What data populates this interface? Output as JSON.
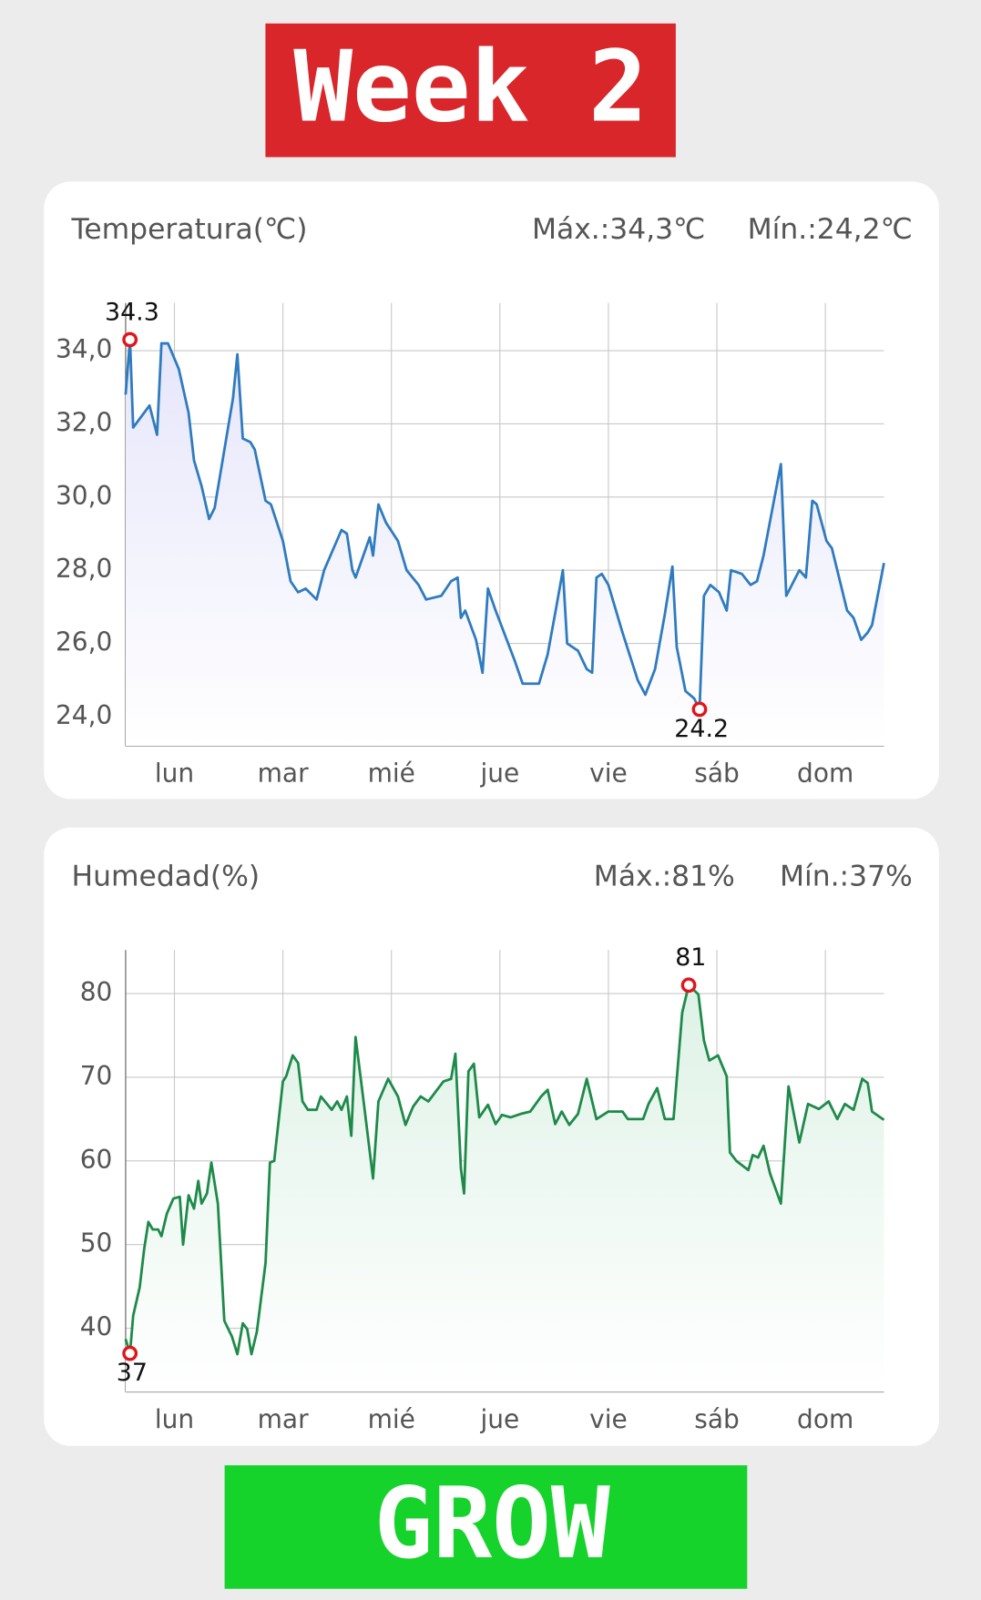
{
  "header": {
    "title": "Week 2"
  },
  "chart_data": [
    {
      "type": "line",
      "title": "Temperatura(℃)",
      "max_label": "Máx.:34,3℃",
      "min_label": "Mín.:24,2℃",
      "color": "#2f7bbf",
      "fill_color": "#e6e6fb",
      "grid": true,
      "x": [
        0.55,
        0.59,
        0.62,
        0.77,
        0.84,
        0.88,
        0.94,
        1.04,
        1.13,
        1.18,
        1.25,
        1.32,
        1.37,
        1.54,
        1.58,
        1.63,
        1.7,
        1.74,
        1.84,
        1.89,
        2.0,
        2.07,
        2.14,
        2.21,
        2.31,
        2.38,
        2.54,
        2.59,
        2.64,
        2.67,
        2.8,
        2.83,
        2.88,
        2.95,
        3.06,
        3.14,
        3.25,
        3.32,
        3.46,
        3.55,
        3.61,
        3.64,
        3.68,
        3.78,
        3.84,
        3.89,
        3.96,
        4.14,
        4.21,
        4.28,
        4.36,
        4.44,
        4.52,
        4.58,
        4.62,
        4.72,
        4.8,
        4.85,
        4.89,
        4.94,
        5.0,
        5.13,
        5.27,
        5.34,
        5.43,
        5.52,
        5.59,
        5.63,
        5.71,
        5.79,
        5.84,
        5.88,
        5.94,
        6.02,
        6.09,
        6.13,
        6.23,
        6.31,
        6.37,
        6.43,
        6.59,
        6.64,
        6.76,
        6.82,
        6.88,
        6.92,
        7.01,
        7.06,
        7.2,
        7.26,
        7.33,
        7.39,
        7.43,
        7.54
      ],
      "values": [
        32.8,
        34.3,
        31.9,
        32.5,
        31.7,
        34.2,
        34.2,
        33.5,
        32.3,
        31.0,
        30.3,
        29.4,
        29.7,
        32.7,
        33.9,
        31.6,
        31.5,
        31.3,
        29.9,
        29.8,
        28.8,
        27.7,
        27.4,
        27.5,
        27.2,
        28.0,
        29.1,
        29.0,
        28.0,
        27.8,
        28.9,
        28.4,
        29.8,
        29.3,
        28.8,
        28.0,
        27.6,
        27.2,
        27.3,
        27.7,
        27.8,
        26.7,
        26.9,
        26.1,
        25.2,
        27.5,
        26.9,
        25.5,
        24.9,
        24.9,
        24.9,
        25.7,
        27.0,
        28.0,
        26.0,
        25.8,
        25.3,
        25.2,
        27.8,
        27.9,
        27.6,
        26.3,
        25.0,
        24.6,
        25.3,
        26.8,
        28.1,
        25.9,
        24.7,
        24.5,
        24.2,
        27.3,
        27.6,
        27.4,
        26.9,
        28.0,
        27.9,
        27.6,
        27.7,
        28.4,
        30.9,
        27.3,
        28.0,
        27.8,
        29.9,
        29.8,
        28.8,
        28.6,
        26.9,
        26.7,
        26.1,
        26.3,
        26.5,
        28.2
      ],
      "xlim": [
        0.55,
        7.54
      ],
      "xticks": [
        {
          "value": 1,
          "label": "lun"
        },
        {
          "value": 2,
          "label": "mar"
        },
        {
          "value": 3,
          "label": "mié"
        },
        {
          "value": 4,
          "label": "jue"
        },
        {
          "value": 5,
          "label": "vie"
        },
        {
          "value": 6,
          "label": "sáb"
        },
        {
          "value": 7,
          "label": "dom"
        }
      ],
      "ylim": [
        23.2,
        35.3
      ],
      "yticks": [
        {
          "value": 24,
          "label": "24,0"
        },
        {
          "value": 26,
          "label": "26,0"
        },
        {
          "value": 28,
          "label": "28,0"
        },
        {
          "value": 30,
          "label": "30,0"
        },
        {
          "value": 32,
          "label": "32,0"
        },
        {
          "value": 34,
          "label": "34,0"
        }
      ],
      "annotations": [
        {
          "x": 0.59,
          "value": 34.3,
          "label": "34.3",
          "position": "above"
        },
        {
          "x": 5.84,
          "value": 24.2,
          "label": "24.2",
          "position": "below"
        }
      ]
    },
    {
      "type": "line",
      "title": "Humedad(%)",
      "max_label": "Máx.:81%",
      "min_label": "Mín.:37%",
      "color": "#1e8a4a",
      "fill_color": "#def2e6",
      "grid": true,
      "x": [
        0.55,
        0.59,
        0.62,
        0.68,
        0.72,
        0.76,
        0.8,
        0.85,
        0.88,
        0.93,
        0.99,
        1.05,
        1.08,
        1.13,
        1.18,
        1.22,
        1.25,
        1.3,
        1.34,
        1.4,
        1.46,
        1.53,
        1.58,
        1.63,
        1.67,
        1.71,
        1.76,
        1.84,
        1.88,
        1.92,
        2.0,
        2.03,
        2.09,
        2.14,
        2.18,
        2.23,
        2.31,
        2.35,
        2.45,
        2.5,
        2.54,
        2.59,
        2.63,
        2.67,
        2.75,
        2.83,
        2.88,
        2.97,
        3.06,
        3.13,
        3.2,
        3.27,
        3.34,
        3.41,
        3.48,
        3.55,
        3.59,
        3.64,
        3.67,
        3.71,
        3.76,
        3.81,
        3.89,
        3.96,
        4.02,
        4.1,
        4.19,
        4.28,
        4.38,
        4.44,
        4.51,
        4.57,
        4.64,
        4.72,
        4.8,
        4.89,
        5.0,
        5.13,
        5.18,
        5.32,
        5.37,
        5.45,
        5.52,
        5.6,
        5.68,
        5.74,
        5.83,
        5.88,
        5.93,
        6.01,
        6.09,
        6.12,
        6.18,
        6.29,
        6.33,
        6.38,
        6.43,
        6.49,
        6.59,
        6.66,
        6.76,
        6.84,
        6.94,
        7.03,
        7.11,
        7.18,
        7.26,
        7.34,
        7.39,
        7.43,
        7.54
      ],
      "values": [
        38.7,
        37,
        41.5,
        44.9,
        49.4,
        52.7,
        51.8,
        51.8,
        51.0,
        53.7,
        55.5,
        55.7,
        50.0,
        55.9,
        54.3,
        57.6,
        54.9,
        56.1,
        59.8,
        54.9,
        40.9,
        39.0,
        36.9,
        40.6,
        39.9,
        36.9,
        39.6,
        47.8,
        59.8,
        60.0,
        69.5,
        70.1,
        72.6,
        71.7,
        67.1,
        66.1,
        66.1,
        67.7,
        66.1,
        67.1,
        66.1,
        67.7,
        63.0,
        74.8,
        66.5,
        57.9,
        67.1,
        69.8,
        67.7,
        64.3,
        66.5,
        67.7,
        67.1,
        68.3,
        69.5,
        69.8,
        72.8,
        59.1,
        56.1,
        70.7,
        71.6,
        65.2,
        66.7,
        64.4,
        65.5,
        65.2,
        65.6,
        65.9,
        67.7,
        68.5,
        64.4,
        65.9,
        64.3,
        65.6,
        69.8,
        65.0,
        65.9,
        65.9,
        65.0,
        65.0,
        66.8,
        68.7,
        65.0,
        65.0,
        77.7,
        81,
        79.9,
        74.4,
        72.0,
        72.6,
        70.1,
        61.0,
        60.0,
        58.9,
        60.7,
        60.4,
        61.8,
        58.5,
        54.9,
        68.9,
        62.2,
        66.8,
        66.2,
        67.1,
        65.0,
        66.8,
        66.1,
        69.8,
        69.3,
        65.9,
        64.9
      ],
      "xlim": [
        0.55,
        7.54
      ],
      "xticks": [
        {
          "value": 1,
          "label": "lun"
        },
        {
          "value": 2,
          "label": "mar"
        },
        {
          "value": 3,
          "label": "mié"
        },
        {
          "value": 4,
          "label": "jue"
        },
        {
          "value": 5,
          "label": "vie"
        },
        {
          "value": 6,
          "label": "sáb"
        },
        {
          "value": 7,
          "label": "dom"
        }
      ],
      "ylim": [
        32.4,
        85.2
      ],
      "yticks": [
        40,
        50,
        60,
        70,
        80
      ],
      "annotations": [
        {
          "x": 0.59,
          "value": 37,
          "label": "37",
          "position": "below"
        },
        {
          "x": 5.74,
          "value": 81,
          "label": "81",
          "position": "above"
        }
      ]
    }
  ],
  "footer": {
    "label": "GROW"
  }
}
